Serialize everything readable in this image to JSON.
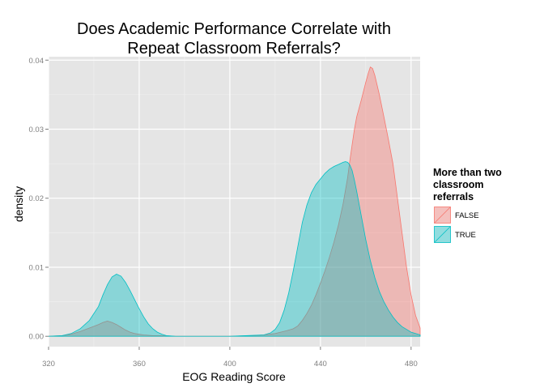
{
  "chart_data": {
    "type": "area",
    "title_lines": [
      "Does Academic Performance Correlate with",
      "Repeat Classroom Referrals?"
    ],
    "xlabel": "EOG Reading Score",
    "ylabel": "density",
    "xlim": [
      320,
      484
    ],
    "ylim": [
      -0.0015,
      0.0405
    ],
    "x_ticks": [
      320,
      360,
      400,
      440,
      480
    ],
    "y_ticks": [
      0.0,
      0.01,
      0.02,
      0.03,
      0.04
    ],
    "y_tick_labels": [
      "0.00",
      "0.01",
      "0.02",
      "0.03",
      "0.04"
    ],
    "grid": true,
    "legend": {
      "title_lines": [
        "More than two",
        "classroom",
        "referrals"
      ],
      "position": "right"
    },
    "series": [
      {
        "name": "FALSE",
        "fill": "#F8766D",
        "stroke": "#F8766D",
        "fill_opacity": 0.4,
        "x": [
          320,
          326,
          330,
          334,
          338,
          342,
          344,
          346,
          348,
          350,
          352,
          354,
          356,
          358,
          362,
          366,
          370,
          376,
          380,
          390,
          400,
          410,
          415,
          420,
          425,
          428,
          430,
          432,
          434,
          436,
          438,
          440,
          442,
          444,
          446,
          448,
          450,
          452,
          453,
          454,
          455,
          456,
          458,
          460,
          461,
          462,
          463,
          464,
          466,
          468,
          470,
          472,
          474,
          476,
          478,
          480,
          482,
          484
        ],
        "y": [
          0,
          0.0001,
          0.0003,
          0.0007,
          0.0012,
          0.0017,
          0.002,
          0.0022,
          0.002,
          0.0017,
          0.0013,
          0.0009,
          0.0006,
          0.0004,
          0.0002,
          0.0001,
          0.0001,
          0,
          0,
          0,
          0,
          0.0001,
          0.0002,
          0.0004,
          0.0008,
          0.0011,
          0.0015,
          0.0023,
          0.0033,
          0.0045,
          0.006,
          0.0077,
          0.0095,
          0.0115,
          0.0137,
          0.0162,
          0.0192,
          0.023,
          0.0255,
          0.0278,
          0.03,
          0.0318,
          0.0342,
          0.0368,
          0.038,
          0.039,
          0.0388,
          0.0378,
          0.035,
          0.0318,
          0.0285,
          0.025,
          0.02,
          0.015,
          0.01,
          0.006,
          0.003,
          0.0012
        ]
      },
      {
        "name": "TRUE",
        "fill": "#00BFC4",
        "stroke": "#00BFC4",
        "fill_opacity": 0.4,
        "x": [
          320,
          326,
          330,
          334,
          338,
          342,
          344,
          346,
          348,
          350,
          352,
          354,
          356,
          358,
          360,
          362,
          364,
          366,
          368,
          370,
          372,
          376,
          380,
          400,
          415,
          418,
          420,
          422,
          424,
          426,
          428,
          430,
          432,
          434,
          436,
          438,
          440,
          442,
          444,
          446,
          448,
          450,
          451,
          452,
          453,
          454,
          455,
          456,
          458,
          460,
          462,
          464,
          466,
          468,
          470,
          472,
          474,
          476,
          478,
          480,
          482,
          484
        ],
        "y": [
          0,
          0.0001,
          0.0004,
          0.0011,
          0.0023,
          0.0043,
          0.006,
          0.0075,
          0.0086,
          0.009,
          0.0087,
          0.0078,
          0.0066,
          0.0053,
          0.004,
          0.0028,
          0.0018,
          0.0011,
          0.0006,
          0.0003,
          0.0001,
          0,
          0,
          0,
          0.0002,
          0.0005,
          0.001,
          0.002,
          0.0038,
          0.0063,
          0.0095,
          0.013,
          0.0165,
          0.019,
          0.0208,
          0.022,
          0.0228,
          0.0236,
          0.0242,
          0.0246,
          0.0249,
          0.0252,
          0.0253,
          0.0252,
          0.0248,
          0.024,
          0.0226,
          0.021,
          0.0175,
          0.014,
          0.011,
          0.0085,
          0.0065,
          0.005,
          0.0038,
          0.0028,
          0.002,
          0.0014,
          0.001,
          0.0006,
          0.0004,
          0.0002
        ]
      }
    ]
  }
}
